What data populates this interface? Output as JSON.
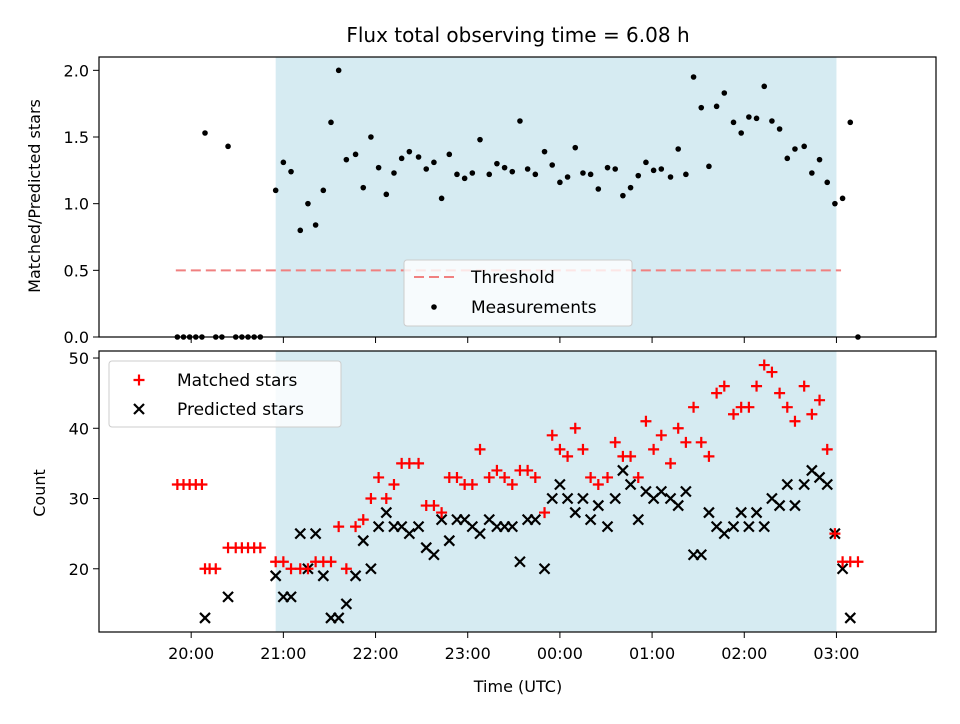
{
  "chart_data": [
    {
      "type": "scatter",
      "title": "Flux total observing time = 6.08 h",
      "ylabel": "Matched/Predicted stars",
      "xlabel": "",
      "x_unit": "hours since 19:30 UTC",
      "ylim": [
        0,
        2.1
      ],
      "yticks": [
        "0.0",
        "0.5",
        "1.0",
        "1.5",
        "2.0"
      ],
      "shaded_span": {
        "from": "20:55",
        "to": "03:00",
        "color": "#add8e6"
      },
      "threshold": {
        "name": "Threshold",
        "value": 0.5,
        "from": "19:50",
        "to": "03:03",
        "color": "#f08080"
      },
      "legend": [
        "Threshold",
        "Measurements"
      ],
      "legend_position": "lower center",
      "series": [
        {
          "name": "Measurements",
          "color": "#000000",
          "points": [
            [
              "19:51",
              0.0
            ],
            [
              "19:55",
              0.0
            ],
            [
              "19:59",
              0.0
            ],
            [
              "20:03",
              0.0
            ],
            [
              "20:07",
              0.0
            ],
            [
              "20:09",
              1.53
            ],
            [
              "20:16",
              0.0
            ],
            [
              "20:20",
              0.0
            ],
            [
              "20:24",
              1.43
            ],
            [
              "20:29",
              0.0
            ],
            [
              "20:33",
              0.0
            ],
            [
              "20:37",
              0.0
            ],
            [
              "20:41",
              0.0
            ],
            [
              "20:45",
              0.0
            ],
            [
              "20:55",
              1.1
            ],
            [
              "21:00",
              1.31
            ],
            [
              "21:05",
              1.24
            ],
            [
              "21:11",
              0.8
            ],
            [
              "21:16",
              1.0
            ],
            [
              "21:21",
              0.84
            ],
            [
              "21:26",
              1.1
            ],
            [
              "21:31",
              1.61
            ],
            [
              "21:36",
              2.0
            ],
            [
              "21:41",
              1.33
            ],
            [
              "21:47",
              1.37
            ],
            [
              "21:52",
              1.12
            ],
            [
              "21:57",
              1.5
            ],
            [
              "22:02",
              1.27
            ],
            [
              "22:07",
              1.07
            ],
            [
              "22:12",
              1.23
            ],
            [
              "22:17",
              1.34
            ],
            [
              "22:22",
              1.39
            ],
            [
              "22:28",
              1.35
            ],
            [
              "22:33",
              1.26
            ],
            [
              "22:38",
              1.31
            ],
            [
              "22:43",
              1.04
            ],
            [
              "22:48",
              1.37
            ],
            [
              "22:53",
              1.22
            ],
            [
              "22:58",
              1.19
            ],
            [
              "23:03",
              1.23
            ],
            [
              "23:08",
              1.48
            ],
            [
              "23:14",
              1.22
            ],
            [
              "23:19",
              1.3
            ],
            [
              "23:24",
              1.27
            ],
            [
              "23:29",
              1.24
            ],
            [
              "23:34",
              1.62
            ],
            [
              "23:39",
              1.26
            ],
            [
              "23:44",
              1.22
            ],
            [
              "23:50",
              1.39
            ],
            [
              "23:55",
              1.29
            ],
            [
              "00:00",
              1.16
            ],
            [
              "00:05",
              1.2
            ],
            [
              "00:10",
              1.42
            ],
            [
              "00:15",
              1.23
            ],
            [
              "00:20",
              1.22
            ],
            [
              "00:25",
              1.11
            ],
            [
              "00:31",
              1.27
            ],
            [
              "00:36",
              1.26
            ],
            [
              "00:41",
              1.06
            ],
            [
              "00:46",
              1.12
            ],
            [
              "00:51",
              1.21
            ],
            [
              "00:56",
              1.31
            ],
            [
              "01:01",
              1.25
            ],
            [
              "01:06",
              1.26
            ],
            [
              "01:12",
              1.2
            ],
            [
              "01:17",
              1.41
            ],
            [
              "01:22",
              1.22
            ],
            [
              "01:27",
              1.95
            ],
            [
              "01:32",
              1.72
            ],
            [
              "01:37",
              1.28
            ],
            [
              "01:42",
              1.73
            ],
            [
              "01:47",
              1.83
            ],
            [
              "01:53",
              1.61
            ],
            [
              "01:58",
              1.53
            ],
            [
              "02:03",
              1.65
            ],
            [
              "02:08",
              1.64
            ],
            [
              "02:13",
              1.88
            ],
            [
              "02:18",
              1.62
            ],
            [
              "02:23",
              1.56
            ],
            [
              "02:28",
              1.34
            ],
            [
              "02:33",
              1.41
            ],
            [
              "02:39",
              1.43
            ],
            [
              "02:44",
              1.23
            ],
            [
              "02:49",
              1.33
            ],
            [
              "02:54",
              1.16
            ],
            [
              "02:59",
              1.0
            ],
            [
              "03:04",
              1.04
            ],
            [
              "03:09",
              1.61
            ],
            [
              "03:14",
              0.0
            ]
          ]
        }
      ]
    },
    {
      "type": "scatter",
      "title": "",
      "ylabel": "Count",
      "xlabel": "Time (UTC)",
      "ylim": [
        11,
        51
      ],
      "yticks": [
        "20",
        "30",
        "40",
        "50"
      ],
      "xticks": [
        "20:00",
        "21:00",
        "22:00",
        "23:00",
        "00:00",
        "01:00",
        "02:00",
        "03:00"
      ],
      "shaded_span": {
        "from": "20:55",
        "to": "03:00",
        "color": "#add8e6"
      },
      "legend": [
        "Matched stars",
        "Predicted stars"
      ],
      "legend_position": "upper left",
      "series": [
        {
          "name": "Matched stars",
          "marker": "+",
          "color": "#ff0000",
          "points": [
            [
              "19:51",
              32
            ],
            [
              "19:55",
              32
            ],
            [
              "19:59",
              32
            ],
            [
              "20:03",
              32
            ],
            [
              "20:07",
              32
            ],
            [
              "20:09",
              20
            ],
            [
              "20:12",
              20
            ],
            [
              "20:16",
              20
            ],
            [
              "20:24",
              23
            ],
            [
              "20:29",
              23
            ],
            [
              "20:33",
              23
            ],
            [
              "20:37",
              23
            ],
            [
              "20:41",
              23
            ],
            [
              "20:45",
              23
            ],
            [
              "20:55",
              21
            ],
            [
              "21:00",
              21
            ],
            [
              "21:05",
              20
            ],
            [
              "21:11",
              20
            ],
            [
              "21:16",
              20
            ],
            [
              "21:21",
              21
            ],
            [
              "21:26",
              21
            ],
            [
              "21:31",
              21
            ],
            [
              "21:36",
              26
            ],
            [
              "21:41",
              20
            ],
            [
              "21:47",
              26
            ],
            [
              "21:52",
              27
            ],
            [
              "21:57",
              30
            ],
            [
              "22:02",
              33
            ],
            [
              "22:07",
              30
            ],
            [
              "22:12",
              32
            ],
            [
              "22:17",
              35
            ],
            [
              "22:22",
              35
            ],
            [
              "22:28",
              35
            ],
            [
              "22:33",
              29
            ],
            [
              "22:38",
              29
            ],
            [
              "22:43",
              28
            ],
            [
              "22:48",
              33
            ],
            [
              "22:53",
              33
            ],
            [
              "22:58",
              32
            ],
            [
              "23:03",
              32
            ],
            [
              "23:08",
              37
            ],
            [
              "23:14",
              33
            ],
            [
              "23:19",
              34
            ],
            [
              "23:24",
              33
            ],
            [
              "23:29",
              32
            ],
            [
              "23:34",
              34
            ],
            [
              "23:39",
              34
            ],
            [
              "23:44",
              33
            ],
            [
              "23:50",
              28
            ],
            [
              "23:55",
              39
            ],
            [
              "00:00",
              37
            ],
            [
              "00:05",
              36
            ],
            [
              "00:10",
              40
            ],
            [
              "00:15",
              37
            ],
            [
              "00:20",
              33
            ],
            [
              "00:25",
              32
            ],
            [
              "00:31",
              33
            ],
            [
              "00:36",
              38
            ],
            [
              "00:41",
              36
            ],
            [
              "00:46",
              36
            ],
            [
              "00:51",
              33
            ],
            [
              "00:56",
              41
            ],
            [
              "01:01",
              37
            ],
            [
              "01:06",
              39
            ],
            [
              "01:12",
              35
            ],
            [
              "01:17",
              40
            ],
            [
              "01:22",
              38
            ],
            [
              "01:27",
              43
            ],
            [
              "01:32",
              38
            ],
            [
              "01:37",
              36
            ],
            [
              "01:42",
              45
            ],
            [
              "01:47",
              46
            ],
            [
              "01:53",
              42
            ],
            [
              "01:58",
              43
            ],
            [
              "02:03",
              43
            ],
            [
              "02:08",
              46
            ],
            [
              "02:13",
              49
            ],
            [
              "02:18",
              48
            ],
            [
              "02:23",
              45
            ],
            [
              "02:28",
              43
            ],
            [
              "02:33",
              41
            ],
            [
              "02:39",
              46
            ],
            [
              "02:44",
              42
            ],
            [
              "02:49",
              44
            ],
            [
              "02:54",
              37
            ],
            [
              "02:59",
              25
            ],
            [
              "03:04",
              21
            ],
            [
              "03:09",
              21
            ],
            [
              "03:14",
              21
            ]
          ]
        },
        {
          "name": "Predicted stars",
          "marker": "x",
          "color": "#000000",
          "points": [
            [
              "20:09",
              13
            ],
            [
              "20:24",
              16
            ],
            [
              "20:55",
              19
            ],
            [
              "21:00",
              16
            ],
            [
              "21:05",
              16
            ],
            [
              "21:11",
              25
            ],
            [
              "21:16",
              20
            ],
            [
              "21:21",
              25
            ],
            [
              "21:26",
              19
            ],
            [
              "21:31",
              13
            ],
            [
              "21:36",
              13
            ],
            [
              "21:41",
              15
            ],
            [
              "21:47",
              19
            ],
            [
              "21:52",
              24
            ],
            [
              "21:57",
              20
            ],
            [
              "22:02",
              26
            ],
            [
              "22:07",
              28
            ],
            [
              "22:12",
              26
            ],
            [
              "22:17",
              26
            ],
            [
              "22:22",
              25
            ],
            [
              "22:28",
              26
            ],
            [
              "22:33",
              23
            ],
            [
              "22:38",
              22
            ],
            [
              "22:43",
              27
            ],
            [
              "22:48",
              24
            ],
            [
              "22:53",
              27
            ],
            [
              "22:58",
              27
            ],
            [
              "23:03",
              26
            ],
            [
              "23:08",
              25
            ],
            [
              "23:14",
              27
            ],
            [
              "23:19",
              26
            ],
            [
              "23:24",
              26
            ],
            [
              "23:29",
              26
            ],
            [
              "23:34",
              21
            ],
            [
              "23:39",
              27
            ],
            [
              "23:44",
              27
            ],
            [
              "23:50",
              20
            ],
            [
              "23:55",
              30
            ],
            [
              "00:00",
              32
            ],
            [
              "00:05",
              30
            ],
            [
              "00:10",
              28
            ],
            [
              "00:15",
              30
            ],
            [
              "00:20",
              27
            ],
            [
              "00:25",
              29
            ],
            [
              "00:31",
              26
            ],
            [
              "00:36",
              30
            ],
            [
              "00:41",
              34
            ],
            [
              "00:46",
              32
            ],
            [
              "00:51",
              27
            ],
            [
              "00:56",
              31
            ],
            [
              "01:01",
              30
            ],
            [
              "01:06",
              31
            ],
            [
              "01:12",
              30
            ],
            [
              "01:17",
              29
            ],
            [
              "01:22",
              31
            ],
            [
              "01:27",
              22
            ],
            [
              "01:32",
              22
            ],
            [
              "01:37",
              28
            ],
            [
              "01:42",
              26
            ],
            [
              "01:47",
              25
            ],
            [
              "01:53",
              26
            ],
            [
              "01:58",
              28
            ],
            [
              "02:03",
              26
            ],
            [
              "02:08",
              28
            ],
            [
              "02:13",
              26
            ],
            [
              "02:18",
              30
            ],
            [
              "02:23",
              29
            ],
            [
              "02:28",
              32
            ],
            [
              "02:33",
              29
            ],
            [
              "02:39",
              32
            ],
            [
              "02:44",
              34
            ],
            [
              "02:49",
              33
            ],
            [
              "02:54",
              32
            ],
            [
              "02:59",
              25
            ],
            [
              "03:04",
              20
            ],
            [
              "03:09",
              13
            ]
          ]
        }
      ]
    }
  ]
}
